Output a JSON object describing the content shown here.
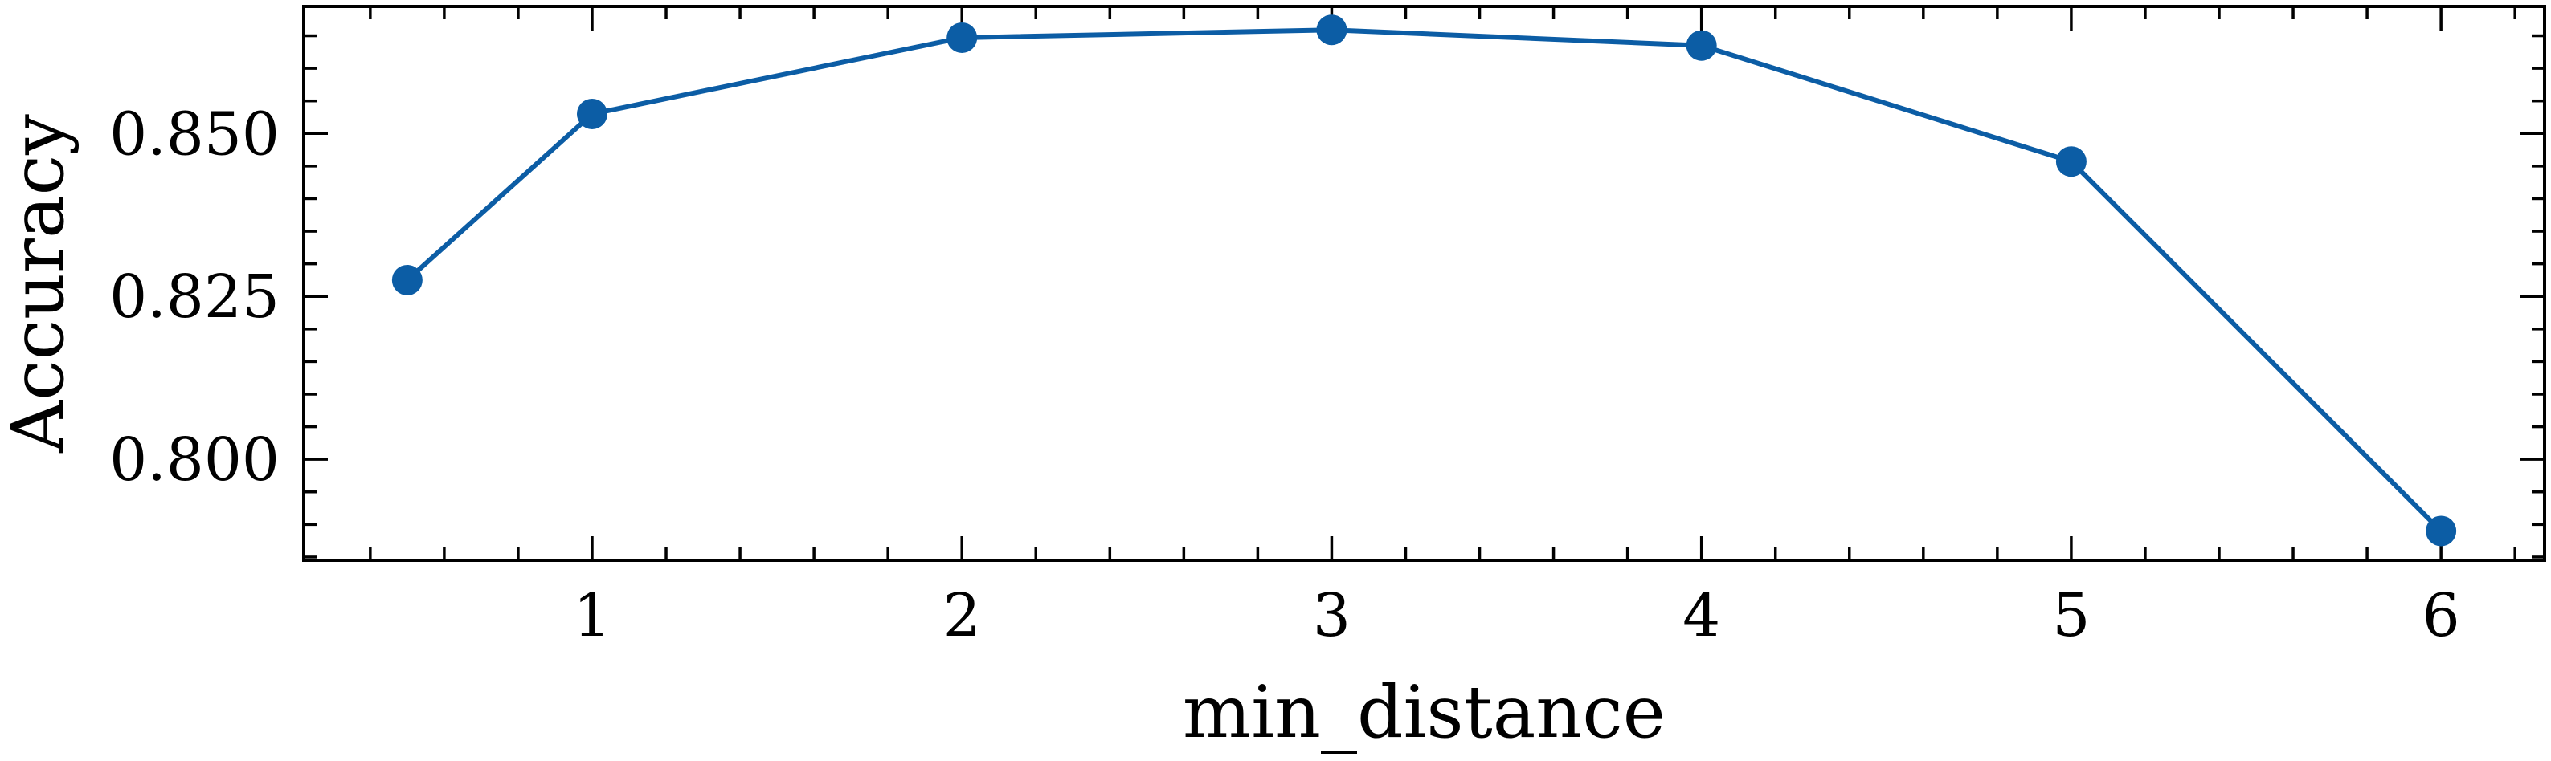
{
  "chart_data": {
    "type": "line",
    "title": "",
    "xlabel": "min_distance",
    "ylabel": "Accuracy",
    "xlim": [
      0.22,
      6.28
    ],
    "ylim": [
      0.7845,
      0.8695
    ],
    "x_ticks": [
      1,
      2,
      3,
      4,
      5,
      6
    ],
    "x_tick_labels": [
      "1",
      "2",
      "3",
      "4",
      "5",
      "6"
    ],
    "x_minor_step": 0.2,
    "y_ticks": [
      0.8,
      0.825,
      0.85
    ],
    "y_tick_labels": [
      "0.800",
      "0.825",
      "0.850"
    ],
    "y_minor_step": 0.005,
    "grid": false,
    "series": [
      {
        "color": "#0C5DA5",
        "marker": "circle",
        "x": [
          0.5,
          1,
          2,
          3,
          4,
          5,
          6
        ],
        "y": [
          0.8275,
          0.853,
          0.8647,
          0.8659,
          0.8635,
          0.8457,
          0.789
        ]
      }
    ]
  }
}
